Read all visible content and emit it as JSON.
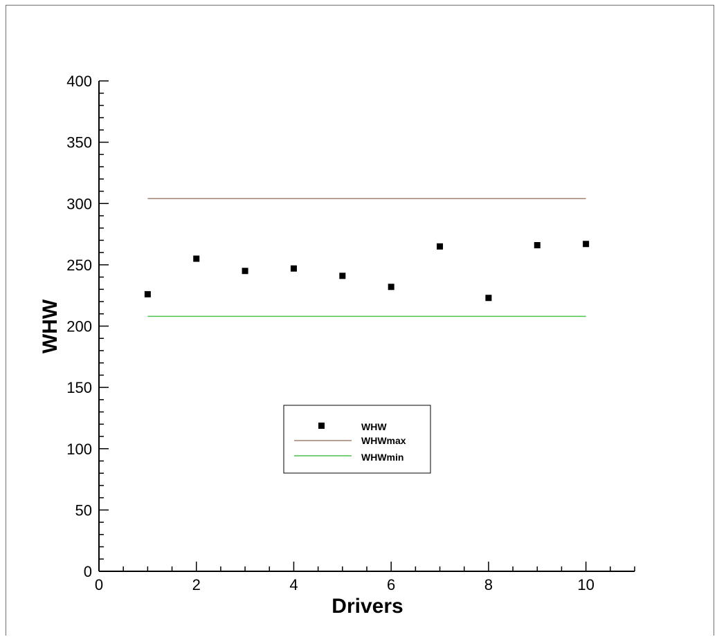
{
  "chart_data": {
    "type": "scatter",
    "title": "",
    "xlabel": "Drivers",
    "ylabel": "WHW",
    "xlim": [
      0,
      11
    ],
    "ylim": [
      0,
      400
    ],
    "x_ticks": [
      0,
      2,
      4,
      6,
      8,
      10
    ],
    "y_ticks": [
      0,
      50,
      100,
      150,
      200,
      250,
      300,
      350,
      400
    ],
    "x_tick_labels": [
      "0",
      "2",
      "4",
      "6",
      "8",
      "10"
    ],
    "y_tick_labels": [
      "0",
      "50",
      "100",
      "150",
      "200",
      "250",
      "300",
      "350",
      "400"
    ],
    "grid": false,
    "legend_position": "center",
    "series": [
      {
        "name": "WHW",
        "kind": "scatter",
        "color": "#000000",
        "x": [
          1,
          2,
          3,
          4,
          5,
          6,
          7,
          8,
          9,
          10
        ],
        "y": [
          226,
          255,
          245,
          247,
          241,
          232,
          265,
          223,
          266,
          267
        ]
      },
      {
        "name": "WHWmax",
        "kind": "line",
        "color": "#a08070",
        "x": [
          1,
          10
        ],
        "y": [
          304,
          304
        ]
      },
      {
        "name": "WHWmin",
        "kind": "line",
        "color": "#4cc24c",
        "x": [
          1,
          10
        ],
        "y": [
          208,
          208
        ]
      }
    ]
  }
}
